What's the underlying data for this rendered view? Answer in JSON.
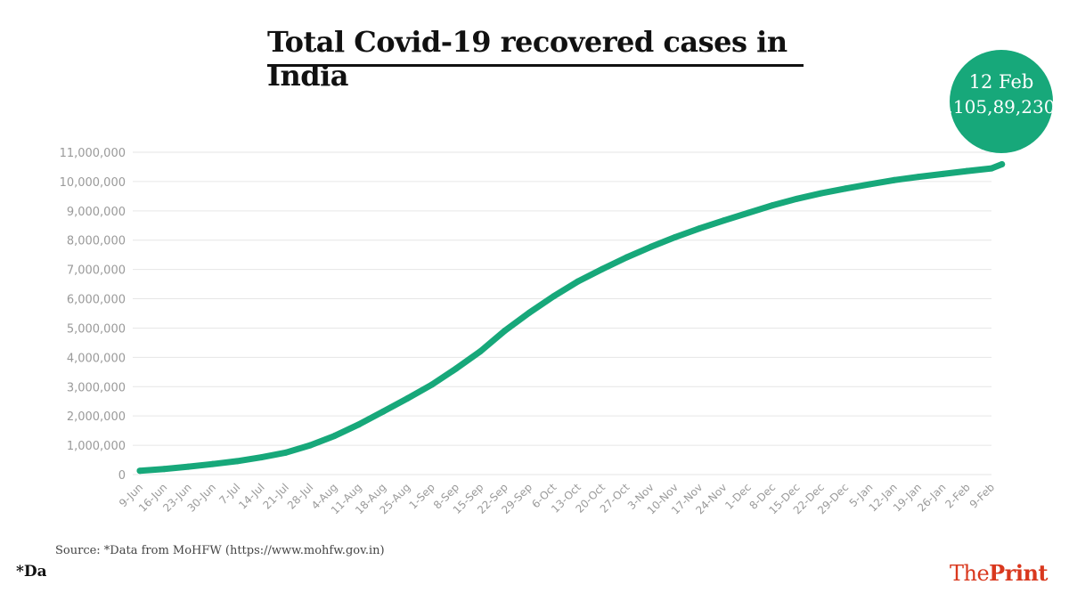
{
  "title": "Total Covid-19 recovered cases in India",
  "annotation": {
    "date": "12 Feb",
    "value": ",105,89,230"
  },
  "source": "Source: *Data from MoHFW (https://www.mohfw.gov.in)",
  "footnote": "*Da",
  "logo": {
    "part1": "The",
    "part2": "Print"
  },
  "colors": {
    "line": "#17a87a",
    "badge": "#17a87a",
    "logo": "#d9381e",
    "grid": "#e6e6e6"
  },
  "chart_data": {
    "type": "line",
    "title": "Total Covid-19 recovered cases in India",
    "xlabel": "",
    "ylabel": "",
    "ylim": [
      0,
      11000000
    ],
    "grid": true,
    "legend": "none",
    "y_ticks": [
      0,
      1000000,
      2000000,
      3000000,
      4000000,
      5000000,
      6000000,
      7000000,
      8000000,
      9000000,
      10000000,
      11000000
    ],
    "y_tick_labels": [
      "0",
      "1,000,000",
      "2,000,000",
      "3,000,000",
      "4,000,000",
      "5,000,000",
      "6,000,000",
      "7,000,000",
      "8,000,000",
      "9,000,000",
      "10,000,000",
      "11,000,000"
    ],
    "categories": [
      "9-Jun",
      "16-Jun",
      "23-Jun",
      "30-Jun",
      "7-Jul",
      "14-Jul",
      "21-Jul",
      "28-Jul",
      "4-Aug",
      "11-Aug",
      "18-Aug",
      "25-Aug",
      "1-Sep",
      "8-Sep",
      "15-Sep",
      "22-Sep",
      "29-Sep",
      "6-Oct",
      "13-Oct",
      "20-Oct",
      "27-Oct",
      "3-Nov",
      "10-Nov",
      "17-Nov",
      "24-Nov",
      "1-Dec",
      "8-Dec",
      "15-Dec",
      "22-Dec",
      "29-Dec",
      "5-Jan",
      "12-Jan",
      "19-Jan",
      "26-Jan",
      "2-Feb",
      "9-Feb"
    ],
    "series": [
      {
        "values": [
          130000,
          190000,
          270000,
          360000,
          460000,
          590000,
          750000,
          1000000,
          1320000,
          1710000,
          2150000,
          2600000,
          3070000,
          3620000,
          4210000,
          4910000,
          5520000,
          6080000,
          6590000,
          7010000,
          7410000,
          7770000,
          8100000,
          8400000,
          8670000,
          8930000,
          9190000,
          9410000,
          9600000,
          9760000,
          9910000,
          10050000,
          10160000,
          10260000,
          10360000,
          10450000
        ],
        "last_point": {
          "date": "12 Feb",
          "value": 10589230
        }
      }
    ]
  }
}
